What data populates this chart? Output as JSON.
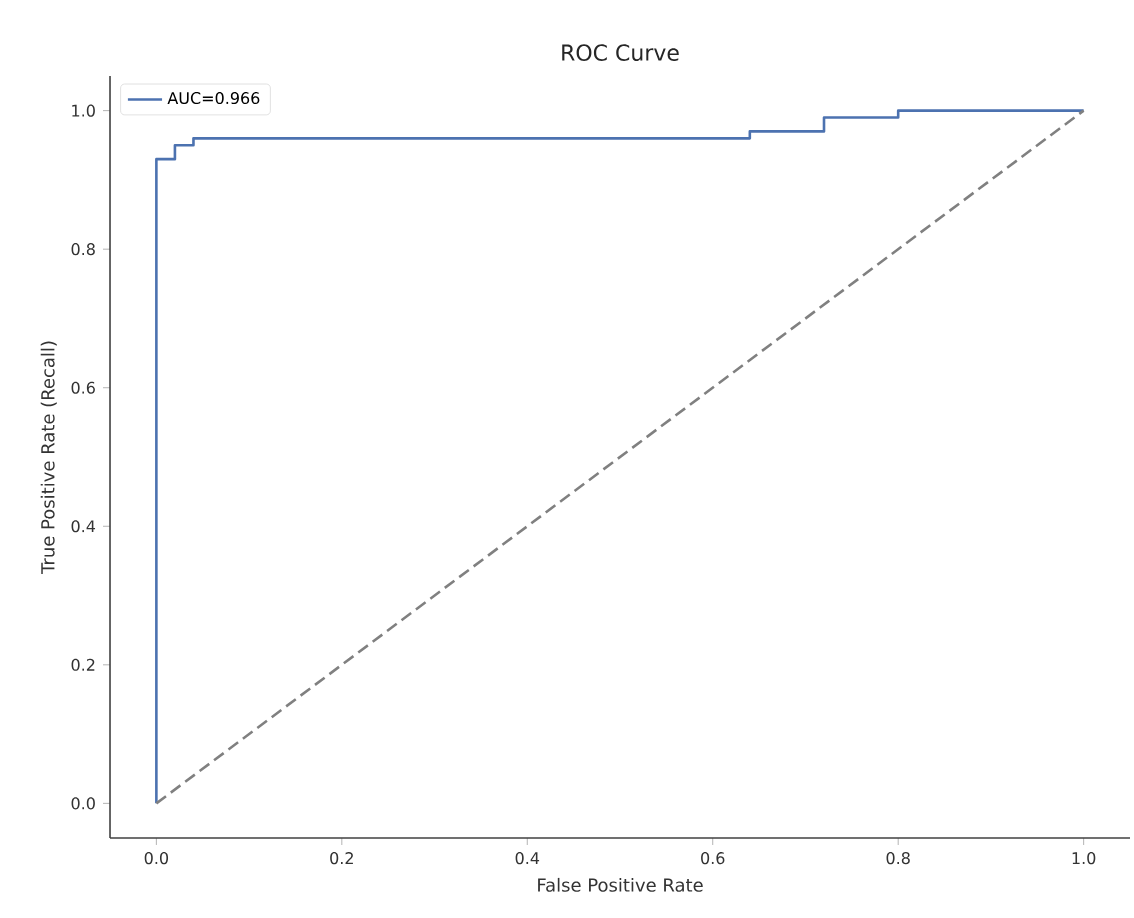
{
  "chart_data": {
    "type": "line",
    "title": "ROC Curve",
    "xlabel": "False Positive Rate",
    "ylabel": "True Positive Rate (Recall)",
    "series": [
      {
        "name": "AUC=0.966",
        "color": "#4c72b0",
        "line_style": "solid",
        "x": [
          0,
          0,
          0.02,
          0.02,
          0.04,
          0.04,
          0.64,
          0.64,
          0.72,
          0.72,
          0.8,
          0.8,
          1
        ],
        "values": [
          0,
          0.93,
          0.93,
          0.95,
          0.95,
          0.96,
          0.96,
          0.97,
          0.97,
          0.99,
          0.99,
          1,
          1
        ]
      },
      {
        "color": "#808080",
        "line_style": "dashed",
        "x": [
          0,
          1
        ],
        "values": [
          0,
          1
        ]
      }
    ],
    "xlim": [
      -0.05,
      1.05
    ],
    "ylim": [
      -0.05,
      1.05
    ],
    "xticks": [
      {
        "value": 0,
        "label": "0.0"
      },
      0.2,
      0.4,
      0.6,
      0.8,
      {
        "value": 1,
        "label": "1.0"
      }
    ],
    "yticks": [
      {
        "value": 0,
        "label": "0.0"
      },
      0.2,
      0.4,
      0.6,
      0.8,
      {
        "value": 1,
        "label": "1.0"
      }
    ],
    "legend": "top left",
    "grid": false,
    "marker": "none"
  }
}
